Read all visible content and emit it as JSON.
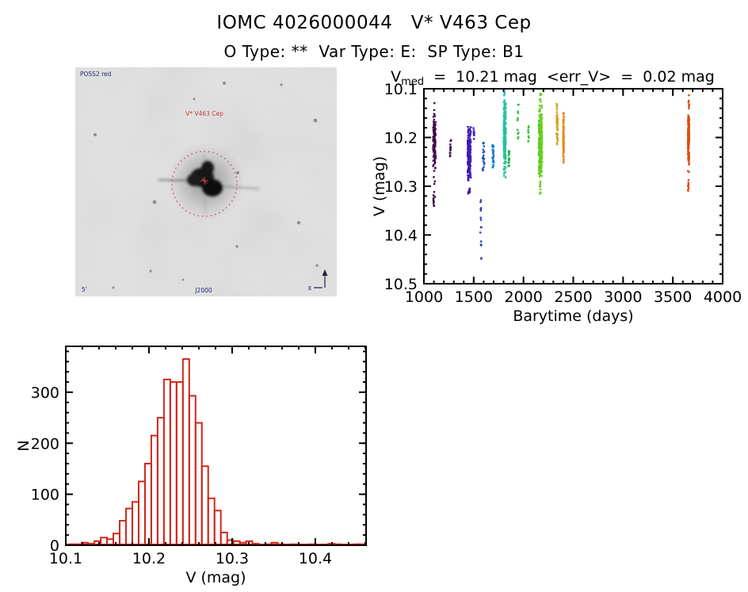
{
  "header": {
    "title": "IOMC 4026000044   V* V463 Cep",
    "subtitle": "O Type: **  Var Type: E:  SP Type: B1"
  },
  "light_curve_title": {
    "v": "V",
    "sub": "med",
    "rest": "  =  10.21 mag  <err_V>  =  0.02 mag"
  },
  "finding_chart": {
    "survey_label": "POSS2 red",
    "star_label": "V* V463 Cep",
    "scale_label": "5'",
    "coords_label": "J2000",
    "east_label": "E",
    "bg_color": "#e4e4e4",
    "marker_color": "#cc4444",
    "annotation_text_color": "#26267a",
    "field_stars": [
      [
        188,
        20,
        2
      ],
      [
        260,
        22,
        1.6
      ],
      [
        303,
        67,
        2.4
      ],
      [
        25,
        85,
        2
      ],
      [
        150,
        40,
        1.5
      ],
      [
        100,
        170,
        2.4
      ],
      [
        205,
        133,
        2
      ],
      [
        282,
        196,
        2.2
      ],
      [
        204,
        226,
        1.8
      ],
      [
        95,
        257,
        1.6
      ],
      [
        305,
        250,
        1.6
      ],
      [
        48,
        278,
        1.5
      ],
      [
        136,
        268,
        1.4
      ]
    ]
  },
  "chart_data": [
    {
      "type": "scatter",
      "title": "V_med = 10.21 mag <err_V> = 0.02 mag",
      "xlabel": "Barytime (days)",
      "ylabel": "V (mag)",
      "xlim": [
        1000,
        4000
      ],
      "ylim_top_to_bottom": [
        10.1,
        10.5
      ],
      "xticks": [
        1000,
        1500,
        2000,
        2500,
        3000,
        3500,
        4000
      ],
      "xtick_labels": [
        "1000",
        "1500",
        "2000",
        "2500",
        "3000",
        "3500",
        "4000"
      ],
      "yticks": [
        10.1,
        10.2,
        10.3,
        10.4,
        10.5
      ],
      "ytick_labels": [
        "10.1",
        "10.2",
        "10.3",
        "10.4",
        "10.5"
      ],
      "x_minor_step": 100,
      "y_minor_step": 0.02,
      "grid": false,
      "legend": false,
      "clusters": [
        {
          "t": 1105,
          "dt": 13,
          "n": 100,
          "v": [
            10.15,
            10.275
          ],
          "dist": "gauss",
          "c1": "#3d0847",
          "c2": "#45094f"
        },
        {
          "t": 1103,
          "dt": 8,
          "n": 14,
          "v": [
            10.275,
            10.345
          ],
          "dist": "uniform",
          "c1": "#3d0847"
        },
        {
          "t": 1106,
          "dt": 5,
          "n": 4,
          "v": [
            10.128,
            10.155
          ],
          "dist": "uniform",
          "c1": "#3d0847"
        },
        {
          "t": 1268,
          "dt": 7,
          "n": 13,
          "v": [
            10.205,
            10.245
          ],
          "dist": "uniform",
          "c1": "#401049"
        },
        {
          "t": 1455,
          "dt": 16,
          "n": 180,
          "v": [
            10.168,
            10.295
          ],
          "dist": "gauss",
          "c1": "#4d0da0",
          "c2": "#3e23c8"
        },
        {
          "t": 1452,
          "dt": 9,
          "n": 9,
          "v": [
            10.295,
            10.315
          ],
          "dist": "uniform",
          "c1": "#4d0da0"
        },
        {
          "t": 1502,
          "dt": 5,
          "n": 8,
          "v": [
            10.158,
            10.21
          ],
          "dist": "uniform",
          "c1": "#3e23c8"
        },
        {
          "t": 1572,
          "dt": 6,
          "n": 15,
          "v": [
            10.325,
            10.455
          ],
          "dist": "uniform",
          "c1": "#2c3db4"
        },
        {
          "t": 1598,
          "dt": 8,
          "n": 22,
          "v": [
            10.21,
            10.268
          ],
          "dist": "uniform",
          "c1": "#2a52c4"
        },
        {
          "t": 1695,
          "dt": 8,
          "n": 26,
          "v": [
            10.215,
            10.262
          ],
          "dist": "uniform",
          "c1": "#1f7ad0"
        },
        {
          "t": 1812,
          "dt": 11,
          "n": 220,
          "v": [
            10.112,
            10.285
          ],
          "dist": "gauss",
          "c1": "#1fbdc4",
          "c2": "#2fc478"
        },
        {
          "t": 1810,
          "dt": 5,
          "n": 4,
          "v": [
            10.098,
            10.115
          ],
          "dist": "uniform",
          "c1": "#22c2b2"
        },
        {
          "t": 1852,
          "dt": 6,
          "n": 16,
          "v": [
            10.225,
            10.265
          ],
          "dist": "uniform",
          "c1": "#27ad52"
        },
        {
          "t": 1945,
          "dt": 6,
          "n": 12,
          "v": [
            10.12,
            10.205
          ],
          "dist": "uniform",
          "c1": "#35bb45"
        },
        {
          "t": 2048,
          "dt": 6,
          "n": 10,
          "v": [
            10.172,
            10.212
          ],
          "dist": "uniform",
          "c1": "#3fc12f"
        },
        {
          "t": 2170,
          "dt": 17,
          "n": 260,
          "v": [
            10.128,
            10.285
          ],
          "dist": "gauss",
          "c1": "#55cb1e",
          "c2": "#72d41a"
        },
        {
          "t": 2168,
          "dt": 8,
          "n": 9,
          "v": [
            10.285,
            10.315
          ],
          "dist": "uniform",
          "c1": "#62cf1c"
        },
        {
          "t": 2172,
          "dt": 8,
          "n": 8,
          "v": [
            10.108,
            10.128
          ],
          "dist": "uniform",
          "c1": "#62cf1c"
        },
        {
          "t": 2338,
          "dt": 6,
          "n": 48,
          "v": [
            10.125,
            10.228
          ],
          "dist": "gauss",
          "c1": "#d2a51e"
        },
        {
          "t": 2402,
          "dt": 4,
          "n": 85,
          "v": [
            10.145,
            10.258
          ],
          "dist": "gauss",
          "c1": "#e68a0f"
        },
        {
          "t": 3658,
          "dt": 7,
          "n": 160,
          "v": [
            10.145,
            10.262
          ],
          "dist": "gauss",
          "c1": "#e04b0c"
        },
        {
          "t": 3656,
          "dt": 5,
          "n": 10,
          "v": [
            10.262,
            10.315
          ],
          "dist": "uniform",
          "c1": "#e04b0c"
        },
        {
          "t": 3660,
          "dt": 5,
          "n": 7,
          "v": [
            10.112,
            10.145
          ],
          "dist": "uniform",
          "c1": "#e04b0c"
        }
      ]
    },
    {
      "type": "bar",
      "title": "",
      "xlabel": "V (mag)",
      "ylabel": "N",
      "xlim": [
        10.1,
        10.461
      ],
      "ylim": [
        0,
        390
      ],
      "xticks": [
        10.1,
        10.2,
        10.3,
        10.4
      ],
      "xtick_labels": [
        "10.1",
        "10.2",
        "10.3",
        "10.4"
      ],
      "yticks": [
        0,
        100,
        200,
        300
      ],
      "ytick_labels": [
        "0",
        "100",
        "200",
        "300"
      ],
      "x_minor_step": 0.02,
      "y_minor_step": 20,
      "bins_start": 10.104,
      "bin_width": 0.0076,
      "counts": [
        2,
        2,
        5,
        3,
        8,
        15,
        12,
        23,
        48,
        72,
        85,
        125,
        160,
        215,
        250,
        325,
        320,
        320,
        365,
        293,
        240,
        155,
        92,
        68,
        25,
        10,
        8,
        5,
        8,
        3,
        0,
        2,
        5,
        2,
        0,
        2,
        1,
        0,
        2,
        1,
        0,
        3,
        2,
        0,
        1,
        2,
        2
      ],
      "bar_color": "#d0281c",
      "grid": false,
      "legend": false
    }
  ]
}
